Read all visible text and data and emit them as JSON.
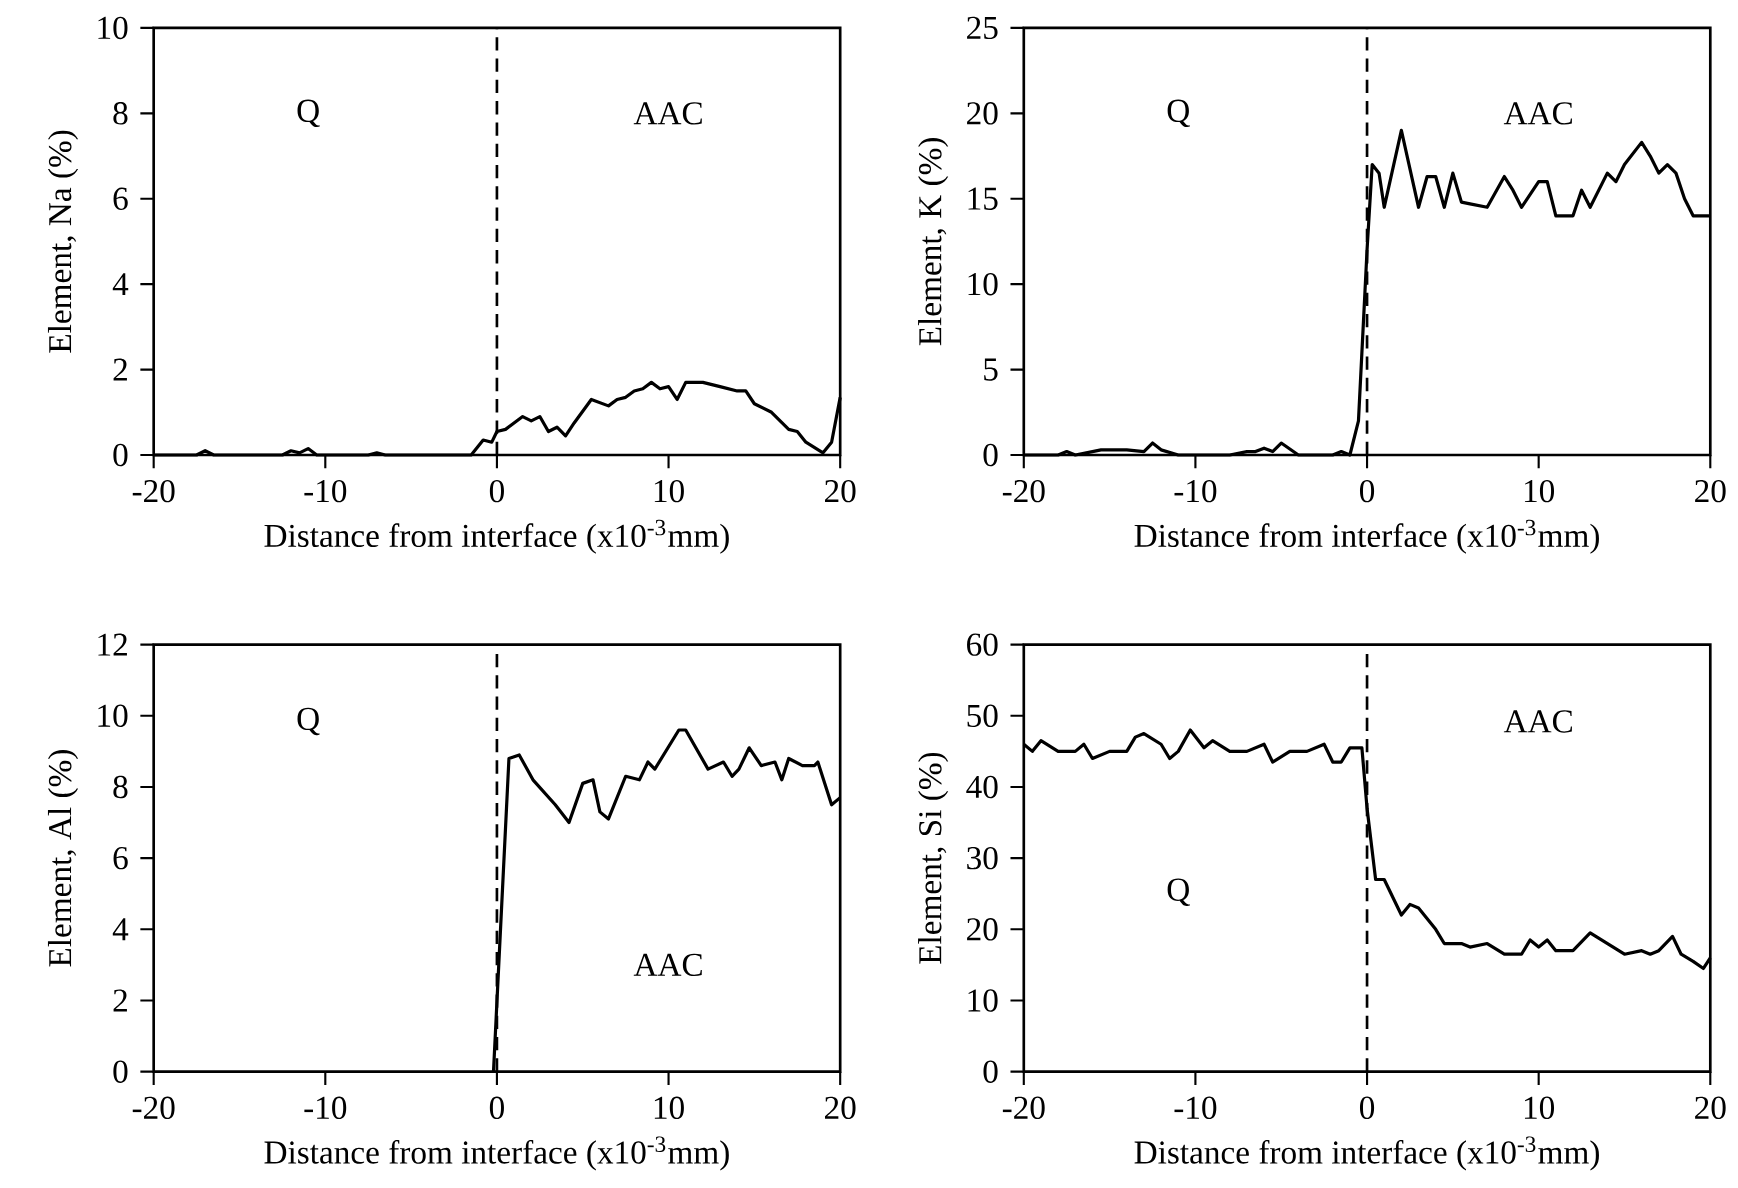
{
  "chart_data": [
    {
      "type": "line",
      "xlabel": "Distance from interface (x10$^{-3}$mm)",
      "ylabel": "Element, Na (%)",
      "xlim": [
        -20,
        20
      ],
      "xticks": [
        -20,
        -10,
        0,
        10,
        20
      ],
      "ylim": [
        0,
        10
      ],
      "yticks": [
        0,
        2,
        4,
        6,
        8,
        10
      ],
      "marker": "none",
      "line_style": "solid",
      "series": [
        {
          "color": "#000000",
          "x": [
            -20,
            -17.5,
            -17,
            -16.5,
            -12.5,
            -12,
            -11.5,
            -11,
            -10.5,
            -7.5,
            -7,
            -6.5,
            -1.5,
            -0.8,
            -0.3,
            0,
            0.5,
            1.5,
            2,
            2.5,
            3,
            3.5,
            4,
            4.5,
            5.5,
            6.5,
            7,
            7.5,
            8,
            8.5,
            9,
            9.5,
            10,
            10.5,
            11,
            12,
            13,
            14,
            14.5,
            15,
            16,
            17,
            17.5,
            18,
            19,
            19.5,
            20
          ],
          "values": [
            0,
            0,
            0.1,
            0,
            0,
            0.1,
            0.05,
            0.15,
            0,
            0,
            0.05,
            0,
            0,
            0.35,
            0.3,
            0.55,
            0.6,
            0.9,
            0.8,
            0.9,
            0.55,
            0.65,
            0.45,
            0.75,
            1.3,
            1.15,
            1.3,
            1.35,
            1.5,
            1.55,
            1.7,
            1.55,
            1.6,
            1.3,
            1.7,
            1.7,
            1.6,
            1.5,
            1.5,
            1.2,
            1.0,
            0.6,
            0.55,
            0.3,
            0.05,
            0.3,
            1.35
          ]
        }
      ],
      "ref_lines": [
        {
          "axis": "x",
          "value": 0,
          "line_style": "dashed"
        }
      ],
      "annotations": [
        "Q",
        "AAC"
      ]
    },
    {
      "type": "line",
      "xlabel": "Distance from interface (x10$^{-3}$mm)",
      "ylabel": "Element, K (%)",
      "xlim": [
        -20,
        20
      ],
      "xticks": [
        -20,
        -10,
        0,
        10,
        20
      ],
      "ylim": [
        0,
        25
      ],
      "yticks": [
        0,
        5,
        10,
        15,
        20,
        25
      ],
      "marker": "none",
      "line_style": "solid",
      "series": [
        {
          "color": "#000000",
          "x": [
            -20,
            -18,
            -17.5,
            -17,
            -16,
            -15.5,
            -14,
            -13,
            -12.5,
            -12,
            -11,
            -10,
            -8,
            -7,
            -6.5,
            -6,
            -5.5,
            -5,
            -4,
            -2,
            -1.5,
            -1,
            -0.5,
            0,
            0.3,
            0.7,
            1,
            2,
            3,
            3.5,
            4,
            4.5,
            5,
            5.5,
            6,
            7,
            8,
            8.5,
            9,
            10,
            10.5,
            11,
            12,
            12.5,
            13,
            14,
            14.5,
            15,
            16,
            16.5,
            17,
            17.5,
            18,
            18.5,
            19,
            19.5,
            20
          ],
          "values": [
            0,
            0,
            0.2,
            0,
            0.2,
            0.3,
            0.3,
            0.2,
            0.7,
            0.3,
            0,
            0,
            0,
            0.2,
            0.2,
            0.4,
            0.2,
            0.7,
            0,
            0,
            0.2,
            0,
            2,
            12,
            17,
            16.5,
            14.5,
            19,
            14.5,
            16.3,
            16.3,
            14.5,
            16.5,
            14.8,
            14.7,
            14.5,
            16.3,
            15.5,
            14.5,
            16,
            16,
            14,
            14,
            15.5,
            14.5,
            16.5,
            16,
            17,
            18.3,
            17.5,
            16.5,
            17,
            16.5,
            15,
            14,
            14,
            14
          ]
        }
      ],
      "ref_lines": [
        {
          "axis": "x",
          "value": 0,
          "line_style": "dashed"
        }
      ],
      "annotations": [
        "Q",
        "AAC"
      ]
    },
    {
      "type": "line",
      "xlabel": "Distance from interface (x10$^{-3}$mm)",
      "ylabel": "Element, Al (%)",
      "xlim": [
        -20,
        20
      ],
      "xticks": [
        -20,
        -10,
        0,
        10,
        20
      ],
      "ylim": [
        0,
        12
      ],
      "yticks": [
        0,
        2,
        4,
        6,
        8,
        10,
        12
      ],
      "marker": "none",
      "line_style": "solid",
      "series": [
        {
          "color": "#000000",
          "x": [
            -0.2,
            0.7,
            1.3,
            2.1,
            3.4,
            4.2,
            5.0,
            5.6,
            6.0,
            6.5,
            7.5,
            8.3,
            8.8,
            9.2,
            10.6,
            11,
            12.3,
            13.2,
            13.7,
            14.1,
            14.7,
            15.4,
            16.2,
            16.6,
            17.0,
            17.8,
            18.5,
            18.7,
            19.5,
            20
          ],
          "values": [
            0,
            8.8,
            8.9,
            8.2,
            7.5,
            7.0,
            8.1,
            8.2,
            7.3,
            7.1,
            8.3,
            8.2,
            8.7,
            8.5,
            9.6,
            9.6,
            8.5,
            8.7,
            8.3,
            8.5,
            9.1,
            8.6,
            8.7,
            8.2,
            8.8,
            8.6,
            8.6,
            8.7,
            7.5,
            7.7
          ]
        }
      ],
      "ref_lines": [
        {
          "axis": "x",
          "value": 0,
          "line_style": "dashed"
        }
      ],
      "annotations": [
        "Q",
        "AAC"
      ]
    },
    {
      "type": "line",
      "xlabel": "Distance from interface (x10$^{-3}$mm)",
      "ylabel": "Element, Si (%)",
      "xlim": [
        -20,
        20
      ],
      "xticks": [
        -20,
        -10,
        0,
        10,
        20
      ],
      "ylim": [
        0,
        60
      ],
      "yticks": [
        0,
        10,
        20,
        30,
        40,
        50,
        60
      ],
      "marker": "none",
      "line_style": "solid",
      "series": [
        {
          "color": "#000000",
          "x": [
            -20,
            -19.5,
            -19,
            -18,
            -17,
            -16.5,
            -16,
            -15,
            -14,
            -13.5,
            -13,
            -12,
            -11.5,
            -11,
            -10.3,
            -9.5,
            -9,
            -8,
            -7,
            -6,
            -5.5,
            -4.5,
            -3.5,
            -2.5,
            -2,
            -1.5,
            -1,
            -0.3,
            0,
            0.5,
            1,
            2,
            2.5,
            3,
            4,
            4.5,
            5.5,
            6,
            7,
            8,
            9,
            9.5,
            10,
            10.5,
            11,
            12,
            13,
            14,
            15,
            16,
            16.5,
            17,
            17.8,
            18.3,
            19,
            19.6,
            20
          ],
          "values": [
            46,
            45,
            46.5,
            45,
            45,
            46,
            44,
            45,
            45,
            47,
            47.5,
            46,
            44,
            45,
            48,
            45.5,
            46.5,
            45,
            45,
            46,
            43.5,
            45,
            45,
            46,
            43.5,
            43.5,
            45.5,
            45.5,
            37,
            27,
            27,
            22,
            23.5,
            23,
            20,
            18,
            18,
            17.5,
            18,
            16.5,
            16.5,
            18.5,
            17.5,
            18.5,
            17,
            17,
            19.5,
            18,
            16.5,
            17,
            16.5,
            17,
            19,
            16.5,
            15.5,
            14.5,
            16
          ]
        }
      ],
      "ref_lines": [
        {
          "axis": "x",
          "value": 0,
          "line_style": "dashed"
        }
      ],
      "annotations": [
        "Q",
        "AAC"
      ]
    }
  ]
}
